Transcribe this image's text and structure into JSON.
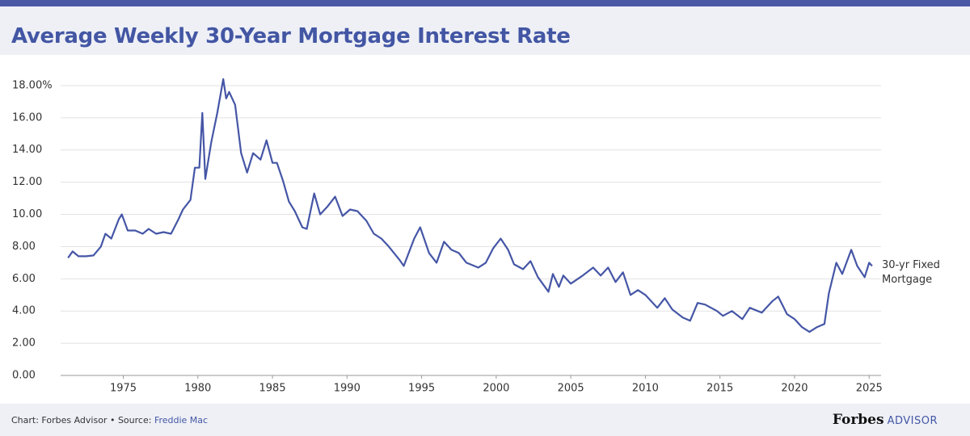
{
  "chart_data": {
    "type": "line",
    "title": "Average Weekly 30-Year Mortgage Interest Rate",
    "x": [
      1971.3,
      1971.6,
      1972,
      1972.5,
      1973,
      1973.5,
      1973.8,
      1974.2,
      1974.7,
      1974.9,
      1975.3,
      1975.8,
      1976.3,
      1976.7,
      1977.2,
      1977.7,
      1978.2,
      1978.7,
      1979,
      1979.5,
      1979.8,
      1980.1,
      1980.3,
      1980.5,
      1980.9,
      1981.3,
      1981.7,
      1981.9,
      1982.1,
      1982.5,
      1982.9,
      1983.3,
      1983.7,
      1984.2,
      1984.6,
      1985,
      1985.3,
      1985.7,
      1986.1,
      1986.5,
      1987,
      1987.3,
      1987.8,
      1988.2,
      1988.7,
      1989.2,
      1989.7,
      1990.2,
      1990.7,
      1991.3,
      1991.8,
      1992.3,
      1992.8,
      1993.5,
      1993.8,
      1994.5,
      1994.9,
      1995.5,
      1996,
      1996.5,
      1997,
      1997.5,
      1998,
      1998.8,
      1999.3,
      1999.8,
      2000.3,
      2000.8,
      2001.2,
      2001.8,
      2002.3,
      2002.8,
      2003.5,
      2003.8,
      2004.2,
      2004.5,
      2005,
      2005.8,
      2006.5,
      2007,
      2007.5,
      2008,
      2008.5,
      2009,
      2009.5,
      2010,
      2010.8,
      2011.3,
      2011.8,
      2012.5,
      2013,
      2013.5,
      2014,
      2014.8,
      2015.2,
      2015.8,
      2016.5,
      2017,
      2017.8,
      2018.5,
      2018.9,
      2019.5,
      2020,
      2020.5,
      2021,
      2021.5,
      2022,
      2022.3,
      2022.8,
      2023.2,
      2023.8,
      2024.2,
      2024.7,
      2025.0,
      2025.2
    ],
    "series": [
      {
        "name": "30-yr Fixed Mortgage",
        "color": "#4556a6",
        "values": [
          7.3,
          7.7,
          7.4,
          7.4,
          7.45,
          8.0,
          8.8,
          8.5,
          9.7,
          10.0,
          9.0,
          9.0,
          8.8,
          9.1,
          8.8,
          8.9,
          8.8,
          9.7,
          10.3,
          10.9,
          12.9,
          12.9,
          16.3,
          12.2,
          14.5,
          16.3,
          18.4,
          17.2,
          17.6,
          16.8,
          13.8,
          12.6,
          13.8,
          13.4,
          14.6,
          13.2,
          13.2,
          12.1,
          10.8,
          10.2,
          9.2,
          9.1,
          11.3,
          10.0,
          10.5,
          11.1,
          9.9,
          10.3,
          10.2,
          9.6,
          8.8,
          8.5,
          8.0,
          7.2,
          6.8,
          8.5,
          9.2,
          7.6,
          7.0,
          8.3,
          7.8,
          7.6,
          7.0,
          6.7,
          7.0,
          7.9,
          8.5,
          7.8,
          6.9,
          6.6,
          7.1,
          6.1,
          5.2,
          6.3,
          5.5,
          6.2,
          5.7,
          6.2,
          6.7,
          6.2,
          6.7,
          5.8,
          6.4,
          5.0,
          5.3,
          5.0,
          4.2,
          4.8,
          4.1,
          3.6,
          3.4,
          4.5,
          4.4,
          4.0,
          3.7,
          4.0,
          3.5,
          4.2,
          3.9,
          4.6,
          4.9,
          3.8,
          3.5,
          3.0,
          2.7,
          3.0,
          3.2,
          5.1,
          7.0,
          6.3,
          7.8,
          6.8,
          6.1,
          7.0,
          6.8
        ]
      }
    ],
    "xlim": [
      1970.8,
      2025.8
    ],
    "ylim": [
      0,
      18.8
    ],
    "xticks": [
      1975,
      1980,
      1985,
      1990,
      1995,
      2000,
      2005,
      2010,
      2015,
      2020,
      2025
    ],
    "yticks": [
      {
        "value": 0,
        "label": "0.00"
      },
      {
        "value": 2,
        "label": "2.00"
      },
      {
        "value": 4,
        "label": "4.00"
      },
      {
        "value": 6,
        "label": "6.00"
      },
      {
        "value": 8,
        "label": "8.00"
      },
      {
        "value": 10,
        "label": "10.00"
      },
      {
        "value": 12,
        "label": "12.00"
      },
      {
        "value": 14,
        "label": "14.00"
      },
      {
        "value": 16,
        "label": "16.00"
      },
      {
        "value": 18,
        "label": "18.00%"
      }
    ],
    "grid": true
  },
  "footer": {
    "source_prefix": "Chart: Forbes Advisor • Source:",
    "source_link": "Freddie Mac",
    "brand": "Forbes",
    "brand_sub": "ADVISOR"
  }
}
